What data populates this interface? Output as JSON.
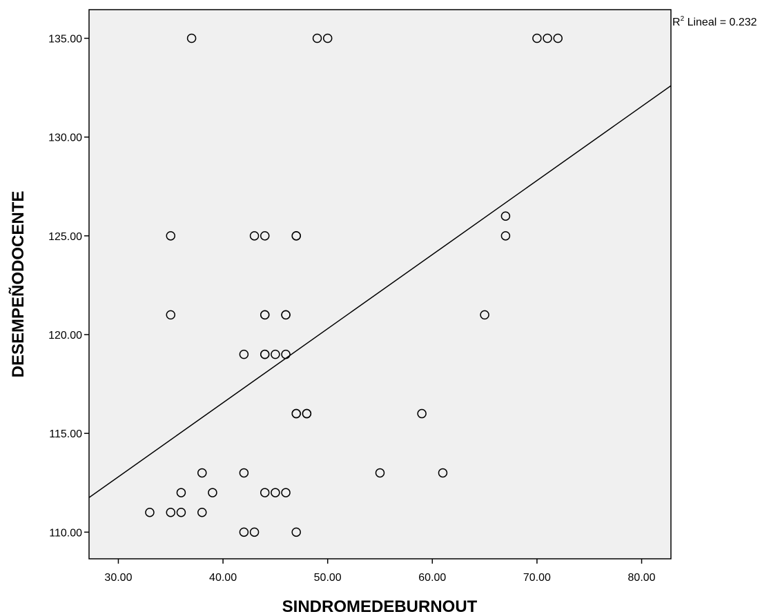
{
  "chart_data": {
    "type": "scatter",
    "title": "",
    "xlabel": "SINDROMEDEBURNOUT",
    "ylabel": "DESEMPEÑODOCENTE",
    "xlim": [
      27.2,
      82.8
    ],
    "ylim": [
      108.65,
      136.45
    ],
    "x_ticks": [
      30,
      40,
      50,
      60,
      70,
      80
    ],
    "x_tick_labels": [
      "30.00",
      "40.00",
      "50.00",
      "60.00",
      "70.00",
      "80.00"
    ],
    "y_ticks": [
      110,
      115,
      120,
      125,
      130,
      135
    ],
    "y_tick_labels": [
      "110.00",
      "115.00",
      "120.00",
      "125.00",
      "130.00",
      "135.00"
    ],
    "grid": false,
    "fit_line": {
      "r2_label": "R",
      "r2_sup": "2",
      "r2_text": " Lineal = 0.232",
      "x": [
        27.2,
        82.8
      ],
      "y": [
        111.75,
        132.6
      ]
    },
    "points": [
      [
        37,
        135
      ],
      [
        49,
        135
      ],
      [
        50,
        135
      ],
      [
        70,
        135
      ],
      [
        71,
        135
      ],
      [
        72,
        135
      ],
      [
        67,
        126
      ],
      [
        35,
        125
      ],
      [
        43,
        125
      ],
      [
        44,
        125
      ],
      [
        47,
        125
      ],
      [
        47,
        125
      ],
      [
        67,
        125
      ],
      [
        35,
        121
      ],
      [
        44,
        121
      ],
      [
        44,
        121
      ],
      [
        46,
        121
      ],
      [
        46,
        121
      ],
      [
        65,
        121
      ],
      [
        42,
        119
      ],
      [
        44,
        119
      ],
      [
        44,
        119
      ],
      [
        45,
        119
      ],
      [
        46,
        119
      ],
      [
        47,
        116
      ],
      [
        47,
        116
      ],
      [
        48,
        116
      ],
      [
        48,
        116
      ],
      [
        59,
        116
      ],
      [
        38,
        113
      ],
      [
        42,
        113
      ],
      [
        55,
        113
      ],
      [
        61,
        113
      ],
      [
        36,
        112
      ],
      [
        39,
        112
      ],
      [
        44,
        112
      ],
      [
        45,
        112
      ],
      [
        46,
        112
      ],
      [
        33,
        111
      ],
      [
        35,
        111
      ],
      [
        36,
        111
      ],
      [
        38,
        111
      ],
      [
        42,
        110
      ],
      [
        43,
        110
      ],
      [
        47,
        110
      ]
    ]
  }
}
